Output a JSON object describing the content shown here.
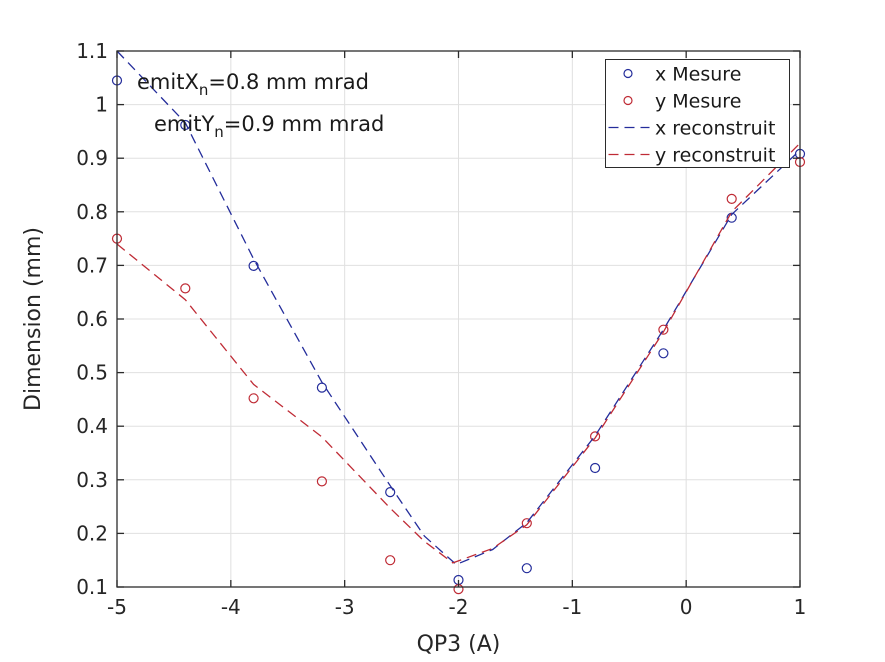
{
  "figure": {
    "background": "#ffffff",
    "colors": {
      "x_series": "#242d9b",
      "y_series": "#bf2b35",
      "grid": "#e0e0e0",
      "spine": "#2b2b2b",
      "text": "#262626"
    },
    "xlabel": "QP3 (A)",
    "ylabel": "Dimension (mm)",
    "annotation": {
      "lines": [
        {
          "pre": "emitX",
          "sub": "n",
          "post": "=0.8 mm mrad"
        },
        {
          "pre": "emitY",
          "sub": "n",
          "post": "=0.9 mm mrad"
        }
      ]
    },
    "legend": {
      "items": [
        {
          "label": "x Mesure",
          "type": "marker",
          "color_key": "x_series"
        },
        {
          "label": "y Mesure",
          "type": "marker",
          "color_key": "y_series"
        },
        {
          "label": "x reconstruit",
          "type": "dash",
          "color_key": "x_series"
        },
        {
          "label": "y reconstruit",
          "type": "dash",
          "color_key": "y_series"
        }
      ]
    }
  },
  "chart_data": {
    "type": "scatter",
    "title": "",
    "xlabel": "QP3 (A)",
    "ylabel": "Dimension (mm)",
    "xlim": [
      -5,
      1
    ],
    "ylim": [
      0.1,
      1.1
    ],
    "x_ticks": [
      -5,
      -4,
      -3,
      -2,
      -1,
      0,
      1
    ],
    "x_tick_labels": [
      "-5",
      "-4",
      "-3",
      "-2",
      "-1",
      "0",
      "1"
    ],
    "y_ticks": [
      0.1,
      0.2,
      0.3,
      0.4,
      0.5,
      0.6,
      0.7,
      0.8,
      0.9,
      1.0,
      1.1
    ],
    "y_tick_labels": [
      "0.1",
      "0.2",
      "0.3",
      "0.4",
      "0.5",
      "0.6",
      "0.7",
      "0.8",
      "0.9",
      "1",
      "1.1"
    ],
    "grid": true,
    "legend_position": "top-right",
    "annotations": [
      "emitX_n=0.8 mm mrad",
      "emitY_n=0.9 mm mrad"
    ],
    "series": [
      {
        "name": "x Mesure",
        "type": "scatter",
        "marker": "circle",
        "color_key": "x_series",
        "x": [
          -5,
          -4.4,
          -3.8,
          -3.2,
          -2.6,
          -2,
          -1.4,
          -0.8,
          -0.2,
          0.4,
          1
        ],
        "y": [
          1.045,
          0.962,
          0.699,
          0.472,
          0.277,
          0.113,
          0.135,
          0.322,
          0.536,
          0.789,
          0.908
        ]
      },
      {
        "name": "y Mesure",
        "type": "scatter",
        "marker": "circle",
        "color_key": "y_series",
        "x": [
          -5,
          -4.4,
          -3.8,
          -3.2,
          -2.6,
          -2,
          -1.4,
          -0.8,
          -0.2,
          0.4,
          1
        ],
        "y": [
          0.75,
          0.657,
          0.452,
          0.297,
          0.15,
          0.096,
          0.219,
          0.381,
          0.58,
          0.824,
          0.893
        ]
      },
      {
        "name": "x reconstruit",
        "type": "line",
        "style": "dashed",
        "color_key": "x_series",
        "x": [
          -5,
          -4.4,
          -3.8,
          -3.2,
          -2.6,
          -2.3,
          -2.02,
          -1.7,
          -1.4,
          -0.8,
          -0.2,
          0.4,
          1
        ],
        "y": [
          1.1,
          0.966,
          0.712,
          0.482,
          0.289,
          0.195,
          0.142,
          0.17,
          0.22,
          0.382,
          0.58,
          0.795,
          0.915
        ]
      },
      {
        "name": "y reconstruit",
        "type": "line",
        "style": "dashed",
        "color_key": "y_series",
        "x": [
          -5,
          -4.4,
          -3.8,
          -3.2,
          -2.6,
          -2.3,
          -2.05,
          -1.7,
          -1.4,
          -0.8,
          -0.2,
          0.4,
          1
        ],
        "y": [
          0.74,
          0.636,
          0.478,
          0.38,
          0.247,
          0.185,
          0.145,
          0.172,
          0.216,
          0.378,
          0.576,
          0.8,
          0.928
        ]
      }
    ]
  }
}
